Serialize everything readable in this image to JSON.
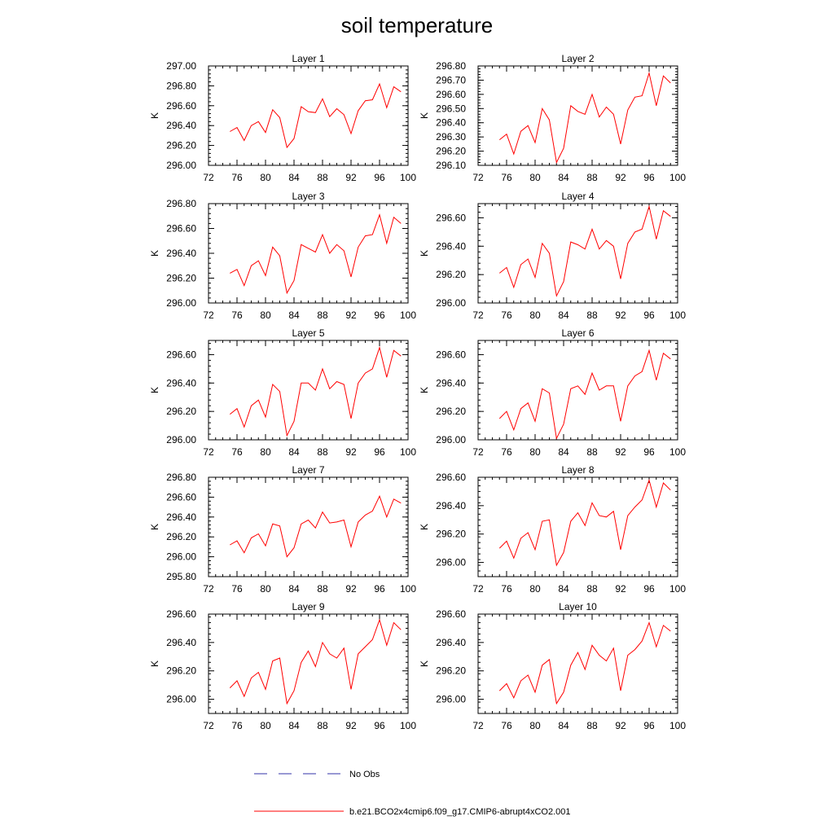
{
  "title": "soil temperature",
  "legend": {
    "placement": "bottom",
    "entries": [
      {
        "name": "No Obs",
        "color": "#3333aa",
        "style": "dashed"
      },
      {
        "name": "b.e21.BCO2x4cmip6.f09_g17.CMIP6-abrupt4xCO2.001",
        "color": "#ff0000",
        "style": "solid"
      }
    ]
  },
  "chart_data": [
    {
      "type": "line",
      "title": "Layer 1",
      "ylabel": "K",
      "xlim": [
        72,
        100
      ],
      "xticks": [
        72,
        76,
        80,
        84,
        88,
        92,
        96,
        100
      ],
      "ylim": [
        296.0,
        297.0
      ],
      "yticks": [
        {
          "v": 296.0,
          "label": "296.00"
        },
        {
          "v": 296.2,
          "label": "296.20"
        },
        {
          "v": 296.4,
          "label": "296.40"
        },
        {
          "v": 296.6,
          "label": "296.60"
        },
        {
          "v": 296.8,
          "label": "296.80"
        },
        {
          "v": 297.0,
          "label": "297.00"
        }
      ],
      "x": [
        75,
        76,
        77,
        78,
        79,
        80,
        81,
        82,
        83,
        84,
        85,
        86,
        87,
        88,
        89,
        90,
        91,
        92,
        93,
        94,
        95,
        96,
        97,
        98,
        99
      ],
      "series": [
        {
          "color": "#ff0000",
          "values": [
            296.34,
            296.38,
            296.25,
            296.4,
            296.44,
            296.33,
            296.56,
            296.48,
            296.18,
            296.27,
            296.59,
            296.54,
            296.53,
            296.67,
            296.49,
            296.57,
            296.51,
            296.32,
            296.55,
            296.65,
            296.66,
            296.82,
            296.58,
            296.79,
            296.74
          ]
        }
      ]
    },
    {
      "type": "line",
      "title": "Layer 2",
      "ylabel": "K",
      "xlim": [
        72,
        100
      ],
      "xticks": [
        72,
        76,
        80,
        84,
        88,
        92,
        96,
        100
      ],
      "ylim": [
        296.1,
        296.8
      ],
      "yticks": [
        {
          "v": 296.1,
          "label": "296.10"
        },
        {
          "v": 296.2,
          "label": "296.20"
        },
        {
          "v": 296.3,
          "label": "296.30"
        },
        {
          "v": 296.4,
          "label": "296.40"
        },
        {
          "v": 296.5,
          "label": "296.50"
        },
        {
          "v": 296.6,
          "label": "296.60"
        },
        {
          "v": 296.7,
          "label": "296.70"
        },
        {
          "v": 296.8,
          "label": "296.80"
        }
      ],
      "x": [
        75,
        76,
        77,
        78,
        79,
        80,
        81,
        82,
        83,
        84,
        85,
        86,
        87,
        88,
        89,
        90,
        91,
        92,
        93,
        94,
        95,
        96,
        97,
        98,
        99
      ],
      "series": [
        {
          "color": "#ff0000",
          "values": [
            296.28,
            296.32,
            296.18,
            296.34,
            296.38,
            296.26,
            296.5,
            296.42,
            296.12,
            296.22,
            296.52,
            296.48,
            296.46,
            296.6,
            296.44,
            296.51,
            296.46,
            296.25,
            296.49,
            296.58,
            296.59,
            296.75,
            296.52,
            296.73,
            296.68
          ]
        }
      ]
    },
    {
      "type": "line",
      "title": "Layer 3",
      "ylabel": "K",
      "xlim": [
        72,
        100
      ],
      "xticks": [
        72,
        76,
        80,
        84,
        88,
        92,
        96,
        100
      ],
      "ylim": [
        296.0,
        296.8
      ],
      "yticks": [
        {
          "v": 296.0,
          "label": "296.00"
        },
        {
          "v": 296.2,
          "label": "296.20"
        },
        {
          "v": 296.4,
          "label": "296.40"
        },
        {
          "v": 296.6,
          "label": "296.60"
        },
        {
          "v": 296.8,
          "label": "296.80"
        }
      ],
      "x": [
        75,
        76,
        77,
        78,
        79,
        80,
        81,
        82,
        83,
        84,
        85,
        86,
        87,
        88,
        89,
        90,
        91,
        92,
        93,
        94,
        95,
        96,
        97,
        98,
        99
      ],
      "series": [
        {
          "color": "#ff0000",
          "values": [
            296.24,
            296.27,
            296.14,
            296.3,
            296.34,
            296.22,
            296.45,
            296.38,
            296.08,
            296.18,
            296.47,
            296.44,
            296.41,
            296.55,
            296.4,
            296.47,
            296.42,
            296.21,
            296.45,
            296.54,
            296.55,
            296.71,
            296.48,
            296.69,
            296.64
          ]
        }
      ]
    },
    {
      "type": "line",
      "title": "Layer 4",
      "ylabel": "K",
      "xlim": [
        72,
        100
      ],
      "xticks": [
        72,
        76,
        80,
        84,
        88,
        92,
        96,
        100
      ],
      "ylim": [
        296.0,
        296.7
      ],
      "yticks": [
        {
          "v": 296.0,
          "label": "296.00"
        },
        {
          "v": 296.2,
          "label": "296.20"
        },
        {
          "v": 296.4,
          "label": "296.40"
        },
        {
          "v": 296.6,
          "label": "296.60"
        }
      ],
      "x": [
        75,
        76,
        77,
        78,
        79,
        80,
        81,
        82,
        83,
        84,
        85,
        86,
        87,
        88,
        89,
        90,
        91,
        92,
        93,
        94,
        95,
        96,
        97,
        98,
        99
      ],
      "series": [
        {
          "color": "#ff0000",
          "values": [
            296.21,
            296.25,
            296.11,
            296.27,
            296.31,
            296.18,
            296.42,
            296.35,
            296.05,
            296.15,
            296.43,
            296.41,
            296.38,
            296.52,
            296.38,
            296.44,
            296.4,
            296.17,
            296.42,
            296.5,
            296.52,
            296.68,
            296.45,
            296.65,
            296.61
          ]
        }
      ]
    },
    {
      "type": "line",
      "title": "Layer 5",
      "ylabel": "K",
      "xlim": [
        72,
        100
      ],
      "xticks": [
        72,
        76,
        80,
        84,
        88,
        92,
        96,
        100
      ],
      "ylim": [
        296.0,
        296.7
      ],
      "yticks": [
        {
          "v": 296.0,
          "label": "296.00"
        },
        {
          "v": 296.2,
          "label": "296.20"
        },
        {
          "v": 296.4,
          "label": "296.40"
        },
        {
          "v": 296.6,
          "label": "296.60"
        }
      ],
      "x": [
        75,
        76,
        77,
        78,
        79,
        80,
        81,
        82,
        83,
        84,
        85,
        86,
        87,
        88,
        89,
        90,
        91,
        92,
        93,
        94,
        95,
        96,
        97,
        98,
        99
      ],
      "series": [
        {
          "color": "#ff0000",
          "values": [
            296.18,
            296.22,
            296.09,
            296.24,
            296.28,
            296.16,
            296.39,
            296.34,
            296.03,
            296.13,
            296.4,
            296.4,
            296.35,
            296.5,
            296.36,
            296.41,
            296.39,
            296.15,
            296.4,
            296.47,
            296.5,
            296.65,
            296.44,
            296.63,
            296.59
          ]
        }
      ]
    },
    {
      "type": "line",
      "title": "Layer 6",
      "ylabel": "K",
      "xlim": [
        72,
        100
      ],
      "xticks": [
        72,
        76,
        80,
        84,
        88,
        92,
        96,
        100
      ],
      "ylim": [
        296.0,
        296.7
      ],
      "yticks": [
        {
          "v": 296.0,
          "label": "296.00"
        },
        {
          "v": 296.2,
          "label": "296.20"
        },
        {
          "v": 296.4,
          "label": "296.40"
        },
        {
          "v": 296.6,
          "label": "296.60"
        }
      ],
      "x": [
        75,
        76,
        77,
        78,
        79,
        80,
        81,
        82,
        83,
        84,
        85,
        86,
        87,
        88,
        89,
        90,
        91,
        92,
        93,
        94,
        95,
        96,
        97,
        98,
        99
      ],
      "series": [
        {
          "color": "#ff0000",
          "values": [
            296.15,
            296.2,
            296.07,
            296.22,
            296.26,
            296.13,
            296.36,
            296.33,
            296.01,
            296.11,
            296.36,
            296.38,
            296.32,
            296.47,
            296.35,
            296.38,
            296.38,
            296.13,
            296.38,
            296.45,
            296.48,
            296.63,
            296.42,
            296.61,
            296.57
          ]
        }
      ]
    },
    {
      "type": "line",
      "title": "Layer 7",
      "ylabel": "K",
      "xlim": [
        72,
        100
      ],
      "xticks": [
        72,
        76,
        80,
        84,
        88,
        92,
        96,
        100
      ],
      "ylim": [
        295.8,
        296.8
      ],
      "yticks": [
        {
          "v": 295.8,
          "label": "295.80"
        },
        {
          "v": 296.0,
          "label": "296.00"
        },
        {
          "v": 296.2,
          "label": "296.20"
        },
        {
          "v": 296.4,
          "label": "296.40"
        },
        {
          "v": 296.6,
          "label": "296.60"
        },
        {
          "v": 296.8,
          "label": "296.80"
        }
      ],
      "x": [
        75,
        76,
        77,
        78,
        79,
        80,
        81,
        82,
        83,
        84,
        85,
        86,
        87,
        88,
        89,
        90,
        91,
        92,
        93,
        94,
        95,
        96,
        97,
        98,
        99
      ],
      "series": [
        {
          "color": "#ff0000",
          "values": [
            296.12,
            296.16,
            296.04,
            296.19,
            296.23,
            296.11,
            296.33,
            296.31,
            296.0,
            296.09,
            296.33,
            296.37,
            296.29,
            296.45,
            296.34,
            296.35,
            296.37,
            296.1,
            296.35,
            296.42,
            296.46,
            296.61,
            296.4,
            296.58,
            296.54
          ]
        }
      ]
    },
    {
      "type": "line",
      "title": "Layer 8",
      "ylabel": "K",
      "xlim": [
        72,
        100
      ],
      "xticks": [
        72,
        76,
        80,
        84,
        88,
        92,
        96,
        100
      ],
      "ylim": [
        295.9,
        296.6
      ],
      "yticks": [
        {
          "v": 296.0,
          "label": "296.00"
        },
        {
          "v": 296.2,
          "label": "296.20"
        },
        {
          "v": 296.4,
          "label": "296.40"
        },
        {
          "v": 296.6,
          "label": "296.60"
        }
      ],
      "x": [
        75,
        76,
        77,
        78,
        79,
        80,
        81,
        82,
        83,
        84,
        85,
        86,
        87,
        88,
        89,
        90,
        91,
        92,
        93,
        94,
        95,
        96,
        97,
        98,
        99
      ],
      "series": [
        {
          "color": "#ff0000",
          "values": [
            296.1,
            296.15,
            296.03,
            296.17,
            296.21,
            296.09,
            296.29,
            296.3,
            295.98,
            296.07,
            296.29,
            296.35,
            296.26,
            296.42,
            296.33,
            296.32,
            296.36,
            296.09,
            296.33,
            296.39,
            296.44,
            296.58,
            296.39,
            296.56,
            296.51
          ]
        }
      ]
    },
    {
      "type": "line",
      "title": "Layer 9",
      "ylabel": "K",
      "xlim": [
        72,
        100
      ],
      "xticks": [
        72,
        76,
        80,
        84,
        88,
        92,
        96,
        100
      ],
      "ylim": [
        295.9,
        296.6
      ],
      "yticks": [
        {
          "v": 296.0,
          "label": "296.00"
        },
        {
          "v": 296.2,
          "label": "296.20"
        },
        {
          "v": 296.4,
          "label": "296.40"
        },
        {
          "v": 296.6,
          "label": "296.60"
        }
      ],
      "x": [
        75,
        76,
        77,
        78,
        79,
        80,
        81,
        82,
        83,
        84,
        85,
        86,
        87,
        88,
        89,
        90,
        91,
        92,
        93,
        94,
        95,
        96,
        97,
        98,
        99
      ],
      "series": [
        {
          "color": "#ff0000",
          "values": [
            296.08,
            296.13,
            296.02,
            296.15,
            296.19,
            296.07,
            296.27,
            296.29,
            295.97,
            296.06,
            296.26,
            296.34,
            296.23,
            296.4,
            296.32,
            296.29,
            296.36,
            296.07,
            296.32,
            296.37,
            296.42,
            296.56,
            296.38,
            296.54,
            296.49
          ]
        }
      ]
    },
    {
      "type": "line",
      "title": "Layer 10",
      "ylabel": "K",
      "xlim": [
        72,
        100
      ],
      "xticks": [
        72,
        76,
        80,
        84,
        88,
        92,
        96,
        100
      ],
      "ylim": [
        295.9,
        296.6
      ],
      "yticks": [
        {
          "v": 296.0,
          "label": "296.00"
        },
        {
          "v": 296.2,
          "label": "296.20"
        },
        {
          "v": 296.4,
          "label": "296.40"
        },
        {
          "v": 296.6,
          "label": "296.60"
        }
      ],
      "x": [
        75,
        76,
        77,
        78,
        79,
        80,
        81,
        82,
        83,
        84,
        85,
        86,
        87,
        88,
        89,
        90,
        91,
        92,
        93,
        94,
        95,
        96,
        97,
        98,
        99
      ],
      "series": [
        {
          "color": "#ff0000",
          "values": [
            296.06,
            296.11,
            296.01,
            296.13,
            296.17,
            296.05,
            296.24,
            296.28,
            295.97,
            296.05,
            296.24,
            296.33,
            296.21,
            296.38,
            296.31,
            296.27,
            296.36,
            296.06,
            296.31,
            296.35,
            296.41,
            296.54,
            296.37,
            296.52,
            296.48
          ]
        }
      ]
    }
  ]
}
